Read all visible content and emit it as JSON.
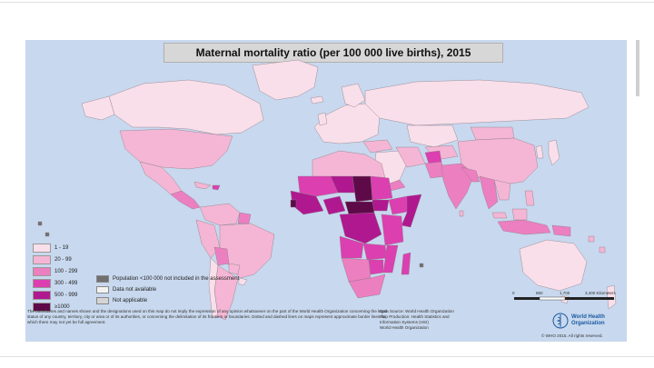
{
  "title": "Maternal mortality ratio (per 100 000 live births), 2015",
  "legend": {
    "classes": [
      {
        "label": "1 - 19",
        "color": "#f9dfe9"
      },
      {
        "label": "20 - 99",
        "color": "#f4b6d4"
      },
      {
        "label": "100 - 299",
        "color": "#ec7fc0"
      },
      {
        "label": "300 - 499",
        "color": "#dc3fb0"
      },
      {
        "label": "500 - 999",
        "color": "#b0188f"
      },
      {
        "label": "≥1000",
        "color": "#5f0a48"
      }
    ],
    "other": [
      {
        "label": "Population <100 000 not included in the assessment",
        "color": "#707070"
      },
      {
        "label": "Data not available",
        "color": "#f2f2f2"
      },
      {
        "label": "Not applicable",
        "color": "#d4d4d4"
      }
    ]
  },
  "colors": {
    "ocean": "#c8d8ee",
    "title_bar": "#d7d7d7",
    "who_blue": "#1a5aa0"
  },
  "disclaimer": "The boundaries and names shown and the designations used on this map do not imply the expression of any opinion whatsoever on the part of the World Health Organization concerning the legal status of any country, territory, city or area or of its authorities, or concerning the delimitation of its frontiers or boundaries. Dotted and dashed lines on maps represent approximate border lines for which there may not yet be full agreement.",
  "source": {
    "line1": "Data Source: World Health Organization",
    "line2": "Map Production: Health Statistics and",
    "line3": "Information Systems (HSI)",
    "line4": "World Health Organization"
  },
  "who": {
    "line1": "World Health",
    "line2": "Organization"
  },
  "copyright": "© WHO 2015. All rights reserved.",
  "scale": {
    "t0": "0",
    "t1": "850",
    "t2": "1,700",
    "t3": "3,400 Kilometers"
  }
}
